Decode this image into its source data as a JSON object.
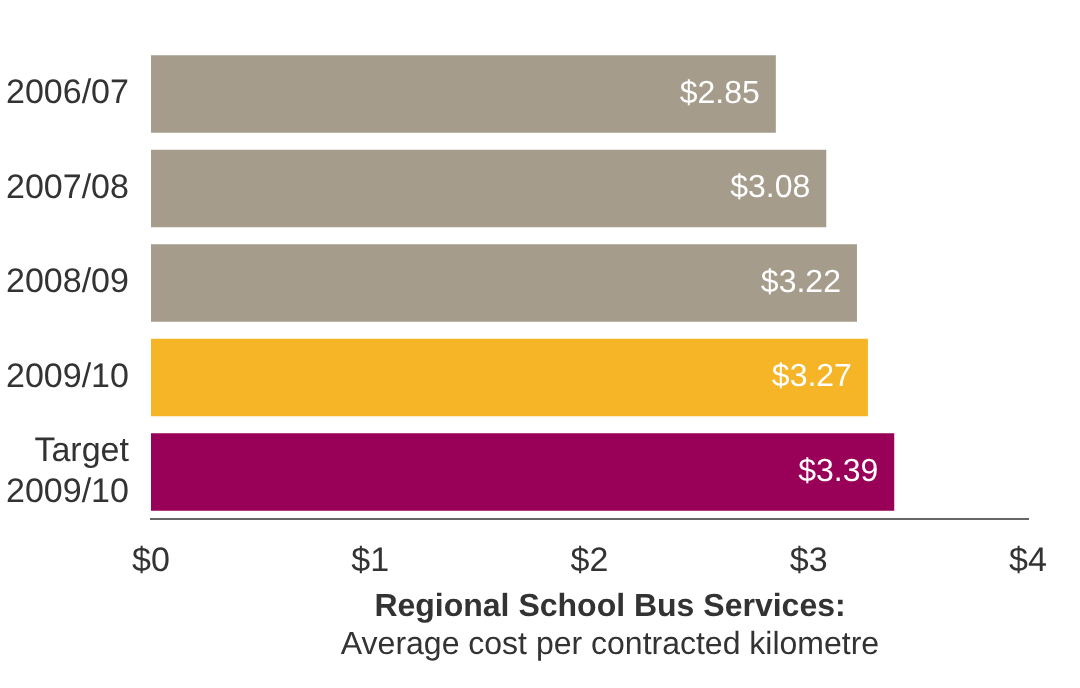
{
  "chart_data": {
    "type": "bar",
    "orientation": "horizontal",
    "categories": [
      "2006/07",
      "2007/08",
      "2008/09",
      "2009/10",
      "Target\n2009/10"
    ],
    "values": [
      2.85,
      3.08,
      3.22,
      3.27,
      3.39
    ],
    "colors": [
      "#a59c8c",
      "#a59c8c",
      "#a59c8c",
      "#f5b526",
      "#990057"
    ],
    "value_labels": [
      "$2.85",
      "$3.08",
      "$3.22",
      "$3.27",
      "$3.39"
    ],
    "xlim": [
      0,
      4
    ],
    "xticks": [
      {
        "value": 0,
        "label": "$0"
      },
      {
        "value": 1,
        "label": "$1"
      },
      {
        "value": 2,
        "label": "$2"
      },
      {
        "value": 3,
        "label": "$3"
      },
      {
        "value": 4,
        "label": "$4"
      }
    ],
    "xlabel": "Regional School Bus Services:\nAverage cost per contracted kilometre",
    "grid": false,
    "legend": false
  }
}
